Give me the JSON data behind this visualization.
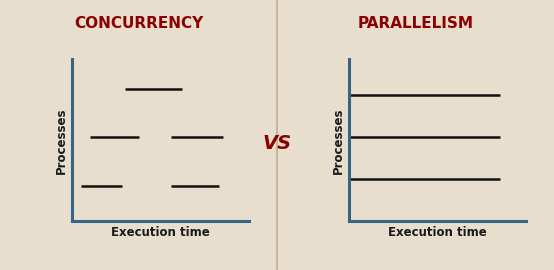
{
  "bg_color": "#e8dece",
  "title_left": "CONCURRENCY",
  "title_right": "PARALLELISM",
  "vs_text": "VS",
  "title_color": "#8b0000",
  "vs_color": "#8b0000",
  "axis_color": "#336688",
  "line_color": "#111111",
  "divider_color": "#c8b898",
  "xlabel": "Execution time",
  "ylabel": "Processes",
  "title_fontsize": 11,
  "vs_fontsize": 14,
  "label_fontsize": 8.5,
  "ylabel_fontsize": 8.5,
  "axis_lw": 2.2,
  "seg_lw": 1.8
}
